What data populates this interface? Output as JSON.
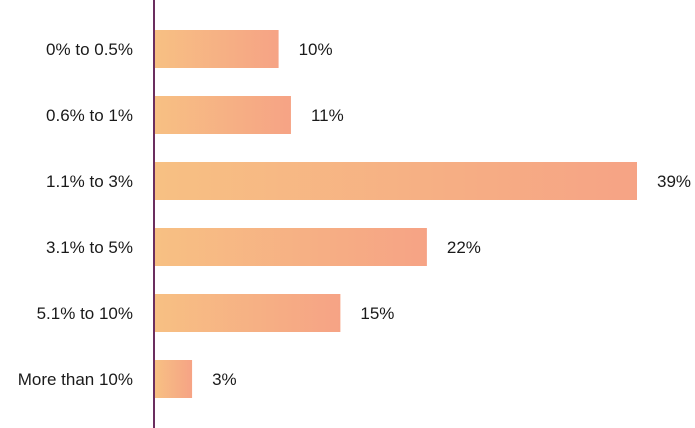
{
  "chart_data": {
    "type": "bar",
    "orientation": "horizontal",
    "categories": [
      "0% to 0.5%",
      "0.6% to 1%",
      "1.1% to 3%",
      "3.1% to 5%",
      "5.1% to 10%",
      "More than 10%"
    ],
    "values": [
      10,
      11,
      39,
      22,
      15,
      3
    ],
    "value_labels": [
      "10%",
      "11%",
      "39%",
      "22%",
      "15%",
      "3%"
    ],
    "title": "",
    "xlabel": "",
    "ylabel": "",
    "xlim": [
      0,
      39
    ],
    "grid": false,
    "legend": "none"
  },
  "colors": {
    "bar_gradient_start": "#f7c083",
    "bar_gradient_end": "#f6a385",
    "axis_line": "#6b2e5f",
    "text": "#1a1a1a"
  }
}
